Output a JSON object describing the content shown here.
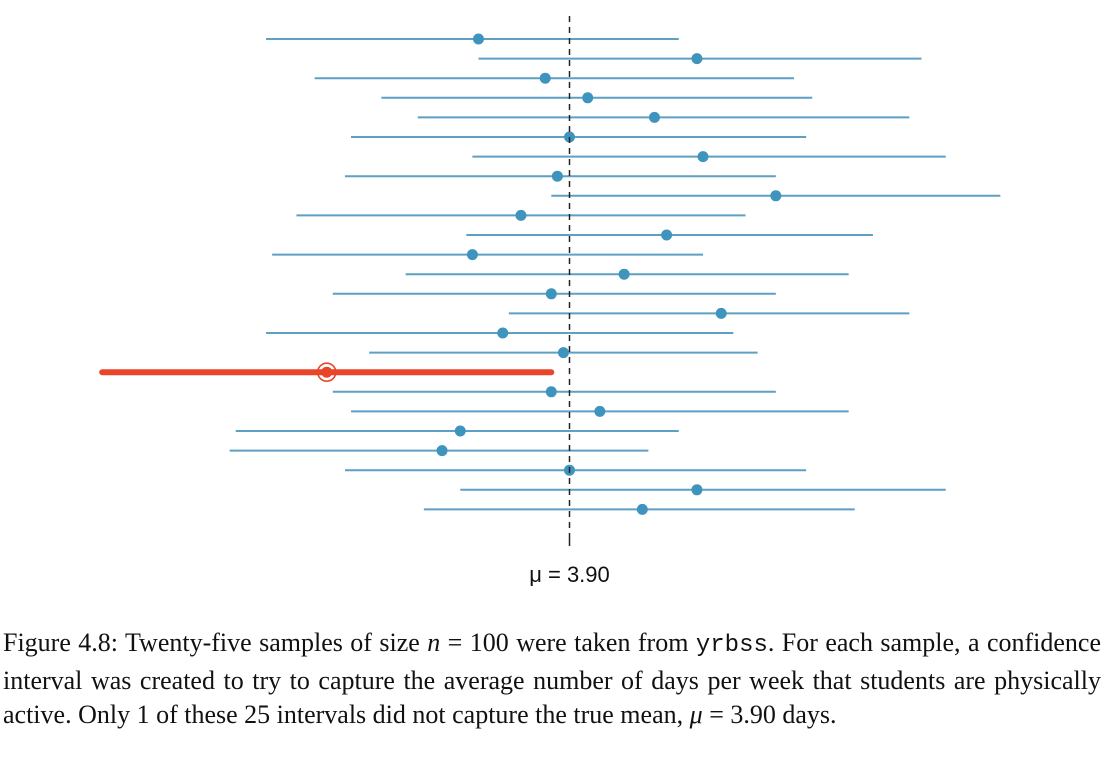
{
  "chart_data": {
    "type": "interval",
    "mu": 3.9,
    "mu_label": "μ = 3.90",
    "xlim": [
      3.1,
      4.7
    ],
    "intervals": [
      {
        "lower": 3.4,
        "upper": 4.08,
        "estimate": 3.75
      },
      {
        "lower": 3.75,
        "upper": 4.48,
        "estimate": 4.11
      },
      {
        "lower": 3.48,
        "upper": 4.27,
        "estimate": 3.86
      },
      {
        "lower": 3.59,
        "upper": 4.3,
        "estimate": 3.93
      },
      {
        "lower": 3.65,
        "upper": 4.46,
        "estimate": 4.04
      },
      {
        "lower": 3.54,
        "upper": 4.29,
        "estimate": 3.9
      },
      {
        "lower": 3.74,
        "upper": 4.52,
        "estimate": 4.12
      },
      {
        "lower": 3.53,
        "upper": 4.24,
        "estimate": 3.88
      },
      {
        "lower": 3.87,
        "upper": 4.61,
        "estimate": 4.24
      },
      {
        "lower": 3.45,
        "upper": 4.19,
        "estimate": 3.82
      },
      {
        "lower": 3.73,
        "upper": 4.4,
        "estimate": 4.06
      },
      {
        "lower": 3.41,
        "upper": 4.12,
        "estimate": 3.74
      },
      {
        "lower": 3.63,
        "upper": 4.36,
        "estimate": 3.99
      },
      {
        "lower": 3.51,
        "upper": 4.24,
        "estimate": 3.87
      },
      {
        "lower": 3.8,
        "upper": 4.46,
        "estimate": 4.15
      },
      {
        "lower": 3.4,
        "upper": 4.17,
        "estimate": 3.79
      },
      {
        "lower": 3.57,
        "upper": 4.21,
        "estimate": 3.89
      },
      {
        "lower": 3.13,
        "upper": 3.87,
        "estimate": 3.5,
        "captures_mu": false
      },
      {
        "lower": 3.51,
        "upper": 4.24,
        "estimate": 3.87
      },
      {
        "lower": 3.54,
        "upper": 4.36,
        "estimate": 3.95
      },
      {
        "lower": 3.35,
        "upper": 4.08,
        "estimate": 3.72
      },
      {
        "lower": 3.34,
        "upper": 4.03,
        "estimate": 3.69
      },
      {
        "lower": 3.53,
        "upper": 4.29,
        "estimate": 3.9
      },
      {
        "lower": 3.72,
        "upper": 4.52,
        "estimate": 4.11
      },
      {
        "lower": 3.66,
        "upper": 4.37,
        "estimate": 4.02
      }
    ]
  },
  "caption": {
    "part1": "Figure 4.8: Twenty-five samples of size ",
    "n_var": "n",
    "part2": " = 100 were taken from ",
    "dataset": "yrbss",
    "part3": ". For each sample, a confidence interval was created to try to capture the average number of days per week that students are physically active. Only 1 of these 25 intervals did not capture the true mean, ",
    "mu_var": "μ",
    "part4": " = 3.90 days."
  }
}
